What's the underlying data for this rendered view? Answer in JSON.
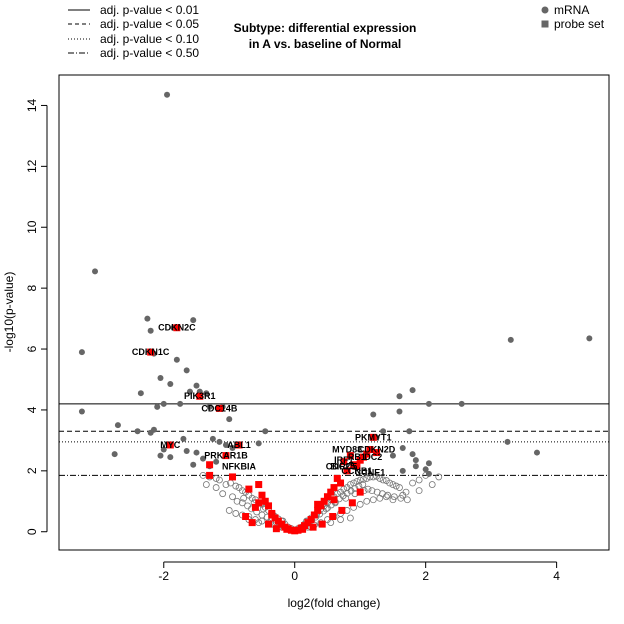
{
  "chart_data": {
    "type": "scatter",
    "title_line1": "Subtype: differential expression",
    "title_line2": "in A vs. baseline of Normal",
    "xlabel": "log2(fold change)",
    "ylabel": "-log10(p-value)",
    "xlim": [
      -3.6,
      4.8
    ],
    "ylim": [
      -0.6,
      15.0
    ],
    "xticks": [
      -2,
      0,
      2,
      4
    ],
    "yticks": [
      0,
      2,
      4,
      6,
      8,
      10,
      12,
      14
    ],
    "grid": false,
    "threshold_legend": [
      {
        "label": "adj. p-value < 0.01",
        "style": "solid",
        "y": 4.2
      },
      {
        "label": "adj. p-value < 0.05",
        "style": "dashed",
        "y": 3.3
      },
      {
        "label": "adj. p-value < 0.10",
        "style": "dotted",
        "y": 2.95
      },
      {
        "label": "adj. p-value < 0.50",
        "style": "dotdash",
        "y": 1.85
      }
    ],
    "type_legend": [
      {
        "label": "mRNA",
        "shape": "circle",
        "color": "#666666"
      },
      {
        "label": "probe set",
        "shape": "square",
        "color": "#666666"
      }
    ],
    "colors": {
      "significant": "#666666",
      "highlight": "#ff0000",
      "hollow_stroke": "#777777"
    },
    "series": [
      {
        "kind": "mRNA significant",
        "x": [
          -1.95,
          -3.05,
          -2.25,
          -1.55,
          -2.2,
          -1.85,
          -3.25,
          -2.15,
          -1.8,
          -1.65,
          -2.05,
          -1.9,
          -1.5,
          -1.45,
          -2.35,
          -1.6,
          -1.35,
          -2.0,
          -1.75,
          -2.1,
          -1.3,
          -1.1,
          -1.0,
          -0.45,
          -2.7,
          -2.4,
          -2.2,
          -1.7,
          -1.25,
          -1.15,
          -1.05,
          -0.95,
          -0.55,
          -2.0,
          -1.65,
          -1.5,
          -1.4,
          -3.25,
          -2.15,
          -2.05,
          -1.9,
          -1.55,
          -1.3,
          -2.75,
          -1.2,
          3.3,
          3.7,
          4.5,
          1.6,
          1.8,
          2.05,
          2.55,
          1.6,
          1.2,
          1.75,
          1.25,
          1.65,
          1.8,
          2.05,
          3.25,
          1.5,
          1.85,
          1.85,
          1.65,
          2.0,
          2.05,
          1.35
        ],
        "y": [
          14.35,
          8.55,
          7.0,
          6.95,
          6.6,
          6.7,
          5.9,
          5.85,
          5.65,
          5.3,
          5.05,
          4.85,
          4.8,
          4.6,
          4.55,
          4.6,
          4.55,
          4.2,
          4.2,
          4.1,
          4.1,
          4.1,
          3.7,
          3.3,
          3.5,
          3.3,
          3.25,
          3.05,
          3.05,
          2.95,
          2.85,
          2.75,
          2.9,
          2.7,
          2.65,
          2.6,
          2.4,
          3.95,
          3.35,
          2.5,
          2.45,
          2.2,
          2.15,
          2.55,
          2.3,
          6.3,
          2.6,
          6.35,
          4.45,
          4.65,
          4.2,
          4.2,
          3.95,
          3.85,
          3.3,
          3.1,
          2.75,
          2.55,
          2.25,
          2.95,
          2.5,
          2.35,
          2.15,
          2.0,
          2.05,
          1.9,
          3.3
        ]
      },
      {
        "kind": "mRNA not significant",
        "x": [
          -1.4,
          -1.3,
          -1.2,
          -1.15,
          -1.05,
          -0.98,
          -0.9,
          -0.85,
          -0.8,
          -0.75,
          -0.7,
          -0.65,
          -0.6,
          -0.55,
          -0.5,
          -0.45,
          -0.4,
          -0.35,
          -0.3,
          -0.25,
          -0.2,
          -0.15,
          -0.1,
          -0.05,
          0.0,
          0.05,
          0.1,
          0.15,
          0.2,
          0.25,
          0.3,
          0.35,
          0.4,
          0.45,
          0.5,
          0.55,
          0.6,
          0.65,
          0.7,
          0.75,
          0.8,
          0.85,
          0.9,
          0.95,
          1.0,
          1.05,
          1.1,
          1.15,
          1.2,
          1.25,
          1.3,
          1.35,
          1.4,
          1.45,
          1.5,
          1.55,
          1.6,
          1.7,
          1.8,
          1.9,
          2.0,
          2.2,
          -1.35,
          -1.2,
          -1.1,
          -0.95,
          -0.88,
          -0.8,
          -0.72,
          -0.66,
          -0.58,
          -0.5,
          -0.42,
          -0.36,
          -0.28,
          -0.22,
          -0.16,
          -0.1,
          -0.04,
          0.02,
          0.08,
          0.14,
          0.2,
          0.26,
          0.32,
          0.38,
          0.44,
          0.5,
          0.56,
          0.62,
          0.68,
          0.74,
          0.8,
          0.86,
          0.92,
          0.98,
          1.04,
          1.12,
          1.18,
          1.26,
          1.34,
          1.42,
          1.52,
          1.62,
          1.72,
          -1.0,
          -0.9,
          -0.8,
          -0.7,
          -0.6,
          -0.5,
          -0.4,
          -0.3,
          -0.2,
          -0.1,
          0.1,
          0.2,
          0.3,
          0.4,
          0.5,
          0.6,
          0.7,
          0.8,
          0.9,
          1.0,
          1.1,
          1.2,
          1.3,
          1.4,
          -0.78,
          -0.62,
          -0.48,
          -0.33,
          -0.18,
          0.18,
          0.33,
          0.48,
          0.62,
          0.78,
          0.92,
          1.06,
          -0.7,
          -0.55,
          -0.4,
          -0.25,
          0.25,
          0.4,
          0.55,
          0.7,
          0.85,
          1.5,
          1.65,
          1.9,
          2.1
        ],
        "y": [
          1.85,
          1.8,
          1.75,
          1.7,
          1.55,
          1.6,
          1.5,
          1.45,
          1.35,
          1.3,
          1.2,
          1.1,
          1.05,
          0.95,
          0.9,
          0.8,
          0.7,
          0.6,
          0.5,
          0.42,
          0.35,
          0.25,
          0.15,
          0.1,
          0.05,
          0.1,
          0.15,
          0.25,
          0.35,
          0.45,
          0.55,
          0.65,
          0.75,
          0.85,
          0.95,
          1.05,
          1.15,
          1.25,
          1.3,
          1.4,
          1.45,
          1.55,
          1.6,
          1.65,
          1.7,
          1.72,
          1.75,
          1.8,
          1.8,
          1.82,
          1.75,
          1.7,
          1.68,
          1.6,
          1.55,
          1.5,
          1.45,
          1.3,
          1.6,
          1.7,
          1.85,
          1.8,
          1.55,
          1.45,
          1.25,
          1.15,
          1.0,
          0.95,
          0.85,
          0.75,
          0.65,
          0.55,
          0.48,
          0.4,
          0.3,
          0.22,
          0.15,
          0.08,
          0.05,
          0.05,
          0.1,
          0.18,
          0.28,
          0.38,
          0.48,
          0.58,
          0.68,
          0.78,
          0.88,
          0.98,
          1.08,
          1.18,
          1.26,
          1.34,
          1.42,
          1.5,
          1.55,
          1.4,
          1.35,
          1.3,
          1.25,
          1.2,
          1.15,
          1.1,
          1.05,
          0.7,
          0.6,
          0.55,
          0.5,
          0.4,
          0.35,
          0.3,
          0.2,
          0.15,
          0.08,
          0.08,
          0.15,
          0.22,
          0.3,
          0.4,
          0.5,
          0.6,
          0.7,
          0.8,
          0.9,
          1.0,
          1.05,
          1.1,
          1.15,
          1.1,
          0.95,
          0.75,
          0.55,
          0.35,
          0.35,
          0.55,
          0.75,
          0.95,
          1.1,
          1.25,
          1.35,
          0.4,
          0.3,
          0.25,
          0.15,
          0.15,
          0.25,
          0.3,
          0.4,
          0.45,
          1.05,
          1.2,
          1.35,
          1.55
        ]
      },
      {
        "kind": "probe set (highlighted)",
        "x": [
          -1.8,
          -2.2,
          -1.45,
          -1.15,
          -1.9,
          -0.85,
          -1.05,
          -1.3,
          -1.3,
          -0.95,
          -0.7,
          -0.55,
          -0.5,
          -0.45,
          -0.6,
          -0.4,
          -0.35,
          -0.3,
          -0.25,
          -0.2,
          -0.15,
          -0.1,
          -0.05,
          0.0,
          0.05,
          0.1,
          0.15,
          0.2,
          0.25,
          0.3,
          0.35,
          0.4,
          0.45,
          0.5,
          0.55,
          0.6,
          0.7,
          0.8,
          0.9,
          1.0,
          1.1,
          1.15,
          1.2,
          1.25,
          0.75,
          0.95,
          1.05,
          0.85,
          0.65,
          -0.75,
          -0.65,
          -0.4,
          -0.28,
          -0.12,
          0.12,
          0.28,
          0.42,
          0.58,
          0.72,
          0.88,
          1.0,
          0.6,
          0.35,
          -0.55,
          -0.35
        ],
        "y": [
          6.7,
          5.9,
          4.45,
          4.05,
          2.85,
          2.85,
          2.5,
          2.2,
          1.85,
          1.8,
          1.4,
          1.55,
          1.2,
          1.0,
          0.8,
          0.85,
          0.6,
          0.45,
          0.35,
          0.25,
          0.15,
          0.1,
          0.05,
          0.03,
          0.05,
          0.12,
          0.2,
          0.3,
          0.4,
          0.55,
          0.7,
          0.85,
          1.0,
          1.15,
          1.3,
          1.45,
          1.6,
          2.0,
          2.2,
          2.35,
          2.55,
          2.7,
          3.1,
          2.6,
          2.3,
          2.15,
          2.45,
          2.5,
          1.75,
          0.5,
          0.3,
          0.25,
          0.1,
          0.08,
          0.08,
          0.15,
          0.25,
          0.5,
          0.7,
          0.95,
          1.3,
          1.05,
          0.9,
          0.95,
          0.55
        ]
      }
    ],
    "gene_labels": [
      {
        "text": "CDKN2C",
        "x": -1.8,
        "y": 6.7
      },
      {
        "text": "CDKN1C",
        "x": -2.2,
        "y": 5.9
      },
      {
        "text": "PIK3R1",
        "x": -1.45,
        "y": 4.45
      },
      {
        "text": "CDC14B",
        "x": -1.15,
        "y": 4.05
      },
      {
        "text": "MYC",
        "x": -1.9,
        "y": 2.85
      },
      {
        "text": "ABL1",
        "x": -0.85,
        "y": 2.85
      },
      {
        "text": "PRKAR1B",
        "x": -1.05,
        "y": 2.5
      },
      {
        "text": "NFKBIA",
        "x": -0.85,
        "y": 2.15
      },
      {
        "text": "PKMYT1",
        "x": 1.2,
        "y": 3.1
      },
      {
        "text": "MYD88",
        "x": 0.8,
        "y": 2.7
      },
      {
        "text": "CDKN2D",
        "x": 1.25,
        "y": 2.7
      },
      {
        "text": "RB1",
        "x": 0.95,
        "y": 2.45
      },
      {
        "text": "DC2",
        "x": 1.2,
        "y": 2.45
      },
      {
        "text": "IRF1",
        "x": 0.75,
        "y": 2.35
      },
      {
        "text": "BIRC5",
        "x": 0.75,
        "y": 2.15
      },
      {
        "text": "CCNB1",
        "x": 0.95,
        "y": 2.0
      },
      {
        "text": "CDC25",
        "x": 0.7,
        "y": 2.15
      },
      {
        "text": "CCNE1",
        "x": 1.15,
        "y": 1.95
      }
    ]
  }
}
